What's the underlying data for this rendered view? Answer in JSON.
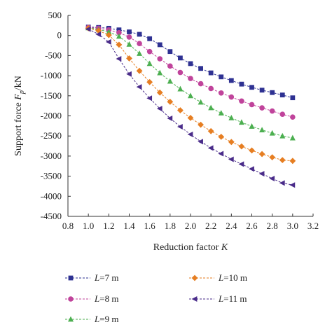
{
  "chart_data": {
    "type": "line",
    "xlabel": {
      "main": "Reduction factor ",
      "var": "K"
    },
    "ylabel": {
      "pre": "Support force ",
      "var": "F",
      "sub": "p",
      "post": "/kN"
    },
    "xlim": [
      0.8,
      3.2
    ],
    "ylim": [
      -4500,
      500
    ],
    "xticks": [
      "0.8",
      "1.0",
      "1.2",
      "1.4",
      "1.6",
      "1.8",
      "2.0",
      "2.2",
      "2.4",
      "2.6",
      "2.8",
      "3.0",
      "3.2"
    ],
    "yticks": [
      "500",
      "0",
      "-500",
      "-1000",
      "-1500",
      "-2000",
      "-2500",
      "-3000",
      "-3500",
      "-4000",
      "-4500"
    ],
    "grid": false,
    "legend_placement": "bottom",
    "x": [
      1.0,
      1.1,
      1.2,
      1.3,
      1.4,
      1.5,
      1.6,
      1.7,
      1.8,
      1.9,
      2.0,
      2.1,
      2.2,
      2.3,
      2.4,
      2.5,
      2.6,
      2.7,
      2.8,
      2.9,
      3.0
    ],
    "series": [
      {
        "name": "L=7 m",
        "label_var": "L",
        "label_rest": "=7 m",
        "color": "#2e3192",
        "marker": "square",
        "values": [
          210,
          200,
          180,
          140,
          90,
          30,
          -80,
          -230,
          -400,
          -560,
          -700,
          -820,
          -930,
          -1030,
          -1120,
          -1210,
          -1290,
          -1360,
          -1420,
          -1480,
          -1550
        ]
      },
      {
        "name": "L=8 m",
        "label_var": "L",
        "label_rest": "=8 m",
        "color": "#c0439b",
        "marker": "circle",
        "values": [
          200,
          180,
          140,
          70,
          -40,
          -200,
          -400,
          -580,
          -760,
          -920,
          -1070,
          -1200,
          -1320,
          -1430,
          -1530,
          -1630,
          -1720,
          -1800,
          -1880,
          -1960,
          -2030
        ]
      },
      {
        "name": "L=9 m",
        "label_var": "L",
        "label_rest": "=9 m",
        "color": "#4caf50",
        "marker": "triangle",
        "values": [
          190,
          150,
          90,
          -20,
          -220,
          -450,
          -700,
          -930,
          -1140,
          -1330,
          -1500,
          -1660,
          -1800,
          -1930,
          -2050,
          -2160,
          -2260,
          -2350,
          -2430,
          -2500,
          -2550
        ]
      },
      {
        "name": "L=10 m",
        "label_var": "L",
        "label_rest": "=10 m",
        "color": "#e67e22",
        "marker": "diamond",
        "values": [
          180,
          120,
          10,
          -230,
          -570,
          -880,
          -1160,
          -1420,
          -1650,
          -1860,
          -2050,
          -2220,
          -2380,
          -2520,
          -2650,
          -2760,
          -2860,
          -2950,
          -3030,
          -3100,
          -3120
        ]
      },
      {
        "name": "L=11 m",
        "label_var": "L",
        "label_rest": "=11 m",
        "color": "#4a2c8a",
        "marker": "left-triangle",
        "values": [
          160,
          30,
          -160,
          -580,
          -960,
          -1280,
          -1560,
          -1820,
          -2060,
          -2270,
          -2460,
          -2640,
          -2800,
          -2940,
          -3080,
          -3200,
          -3320,
          -3440,
          -3560,
          -3670,
          -3720
        ]
      }
    ]
  }
}
